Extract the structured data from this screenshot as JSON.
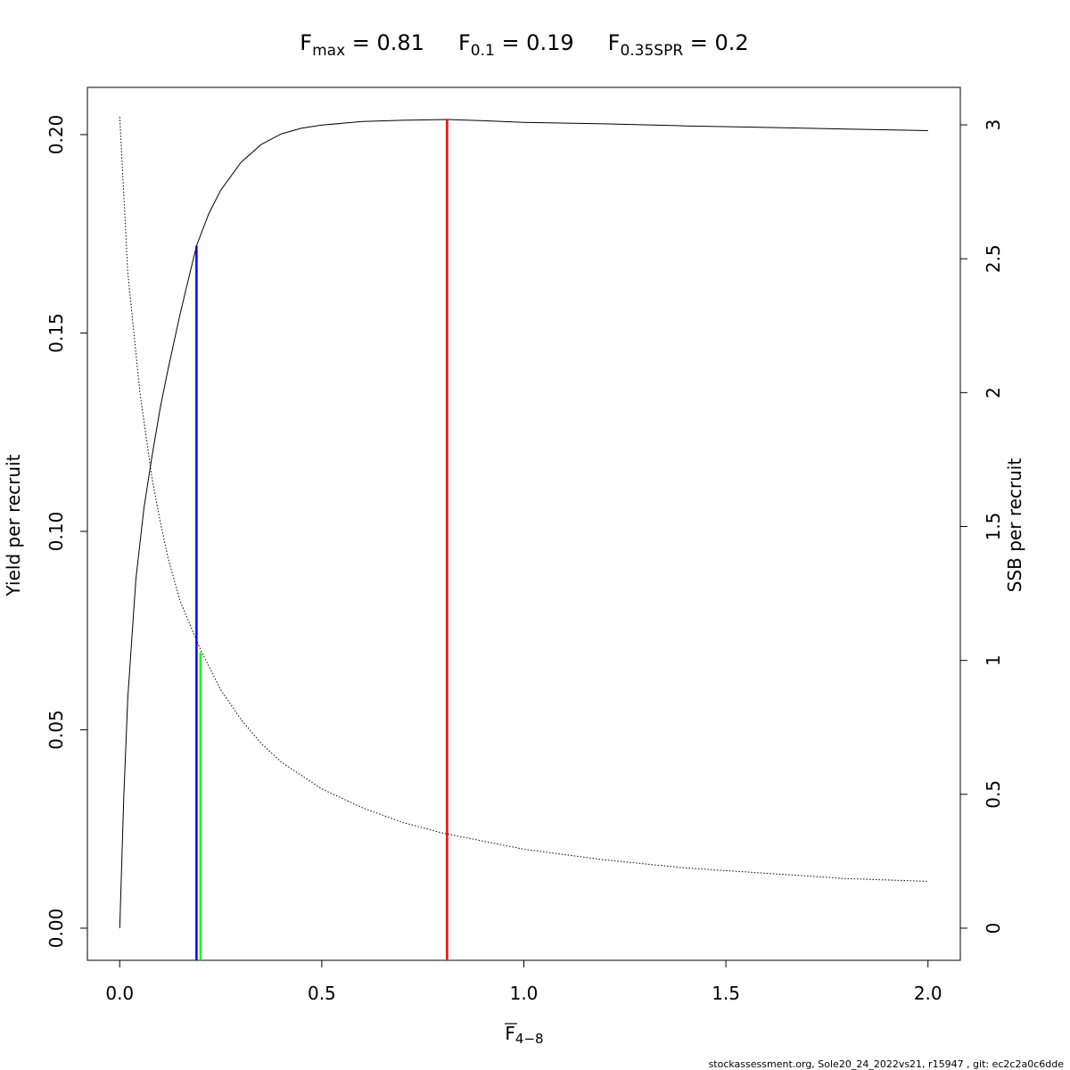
{
  "chart_data": {
    "type": "line",
    "title_parts": [
      {
        "base": "F",
        "sub": "max",
        "value": " = 0.81"
      },
      {
        "base": "F",
        "sub": "0.1",
        "value": " = 0.19"
      },
      {
        "base": "F",
        "sub": "0.35SPR",
        "value": " = 0.2"
      }
    ],
    "xlabel": {
      "base": "F",
      "sub": "4−8"
    },
    "ylabel_left": "Yield per recruit",
    "ylabel_right": "SSB per recruit",
    "xlim": [
      -0.08,
      2.08
    ],
    "ylim_left": [
      -0.0081,
      0.2119
    ],
    "ylim_right": [
      -0.12,
      3.14
    ],
    "x_ticks": [
      0.0,
      0.5,
      1.0,
      1.5,
      2.0
    ],
    "x_tick_labels": [
      "0.0",
      "0.5",
      "1.0",
      "1.5",
      "2.0"
    ],
    "y_left_ticks": [
      0.0,
      0.05,
      0.1,
      0.15,
      0.2
    ],
    "y_left_tick_labels": [
      "0.00",
      "0.05",
      "0.10",
      "0.15",
      "0.20"
    ],
    "y_right_ticks": [
      0,
      0.5,
      1,
      1.5,
      2,
      2.5,
      3
    ],
    "y_right_tick_labels": [
      "0",
      "0.5",
      "1",
      "1.5",
      "2",
      "2.5",
      "3"
    ],
    "series": [
      {
        "axis": "left",
        "style": "solid",
        "color": "#000000",
        "x": [
          0,
          0.01,
          0.02,
          0.04,
          0.06,
          0.08,
          0.1,
          0.12,
          0.15,
          0.19,
          0.22,
          0.25,
          0.3,
          0.35,
          0.4,
          0.45,
          0.5,
          0.6,
          0.7,
          0.81,
          0.9,
          1.0,
          1.2,
          1.4,
          1.6,
          1.8,
          2.0
        ],
        "y": [
          0.0,
          0.033,
          0.058,
          0.088,
          0.106,
          0.119,
          0.131,
          0.141,
          0.155,
          0.172,
          0.18,
          0.186,
          0.193,
          0.1975,
          0.2002,
          0.2016,
          0.2024,
          0.2033,
          0.2036,
          0.2038,
          0.2035,
          0.2031,
          0.2027,
          0.2022,
          0.2018,
          0.2014,
          0.201
        ]
      },
      {
        "axis": "right",
        "style": "dotted",
        "color": "#000000",
        "x": [
          0,
          0.02,
          0.05,
          0.08,
          0.1,
          0.12,
          0.15,
          0.2,
          0.25,
          0.3,
          0.35,
          0.4,
          0.5,
          0.6,
          0.7,
          0.8,
          1.0,
          1.2,
          1.4,
          1.6,
          1.8,
          2.0
        ],
        "y": [
          3.03,
          2.45,
          2.0,
          1.68,
          1.52,
          1.38,
          1.22,
          1.04,
          0.89,
          0.78,
          0.69,
          0.62,
          0.52,
          0.45,
          0.395,
          0.355,
          0.295,
          0.255,
          0.225,
          0.205,
          0.185,
          0.175
        ]
      }
    ],
    "reference_lines": [
      {
        "name": "Fmax",
        "x": 0.81,
        "y_top": 0.2038,
        "axis": "left",
        "color": "#ff0000"
      },
      {
        "name": "F0.1",
        "x": 0.19,
        "y_top": 0.172,
        "axis": "left",
        "color": "#0000ff"
      },
      {
        "name": "F0.35SPR",
        "x": 0.2,
        "y_top": 1.03,
        "axis": "right",
        "color": "#00ff00"
      }
    ],
    "grid": false,
    "legend": "none",
    "footer": "stockassessment.org, Sole20_24_2022vs21, r15947 , git: ec2c2a0c6dde"
  }
}
